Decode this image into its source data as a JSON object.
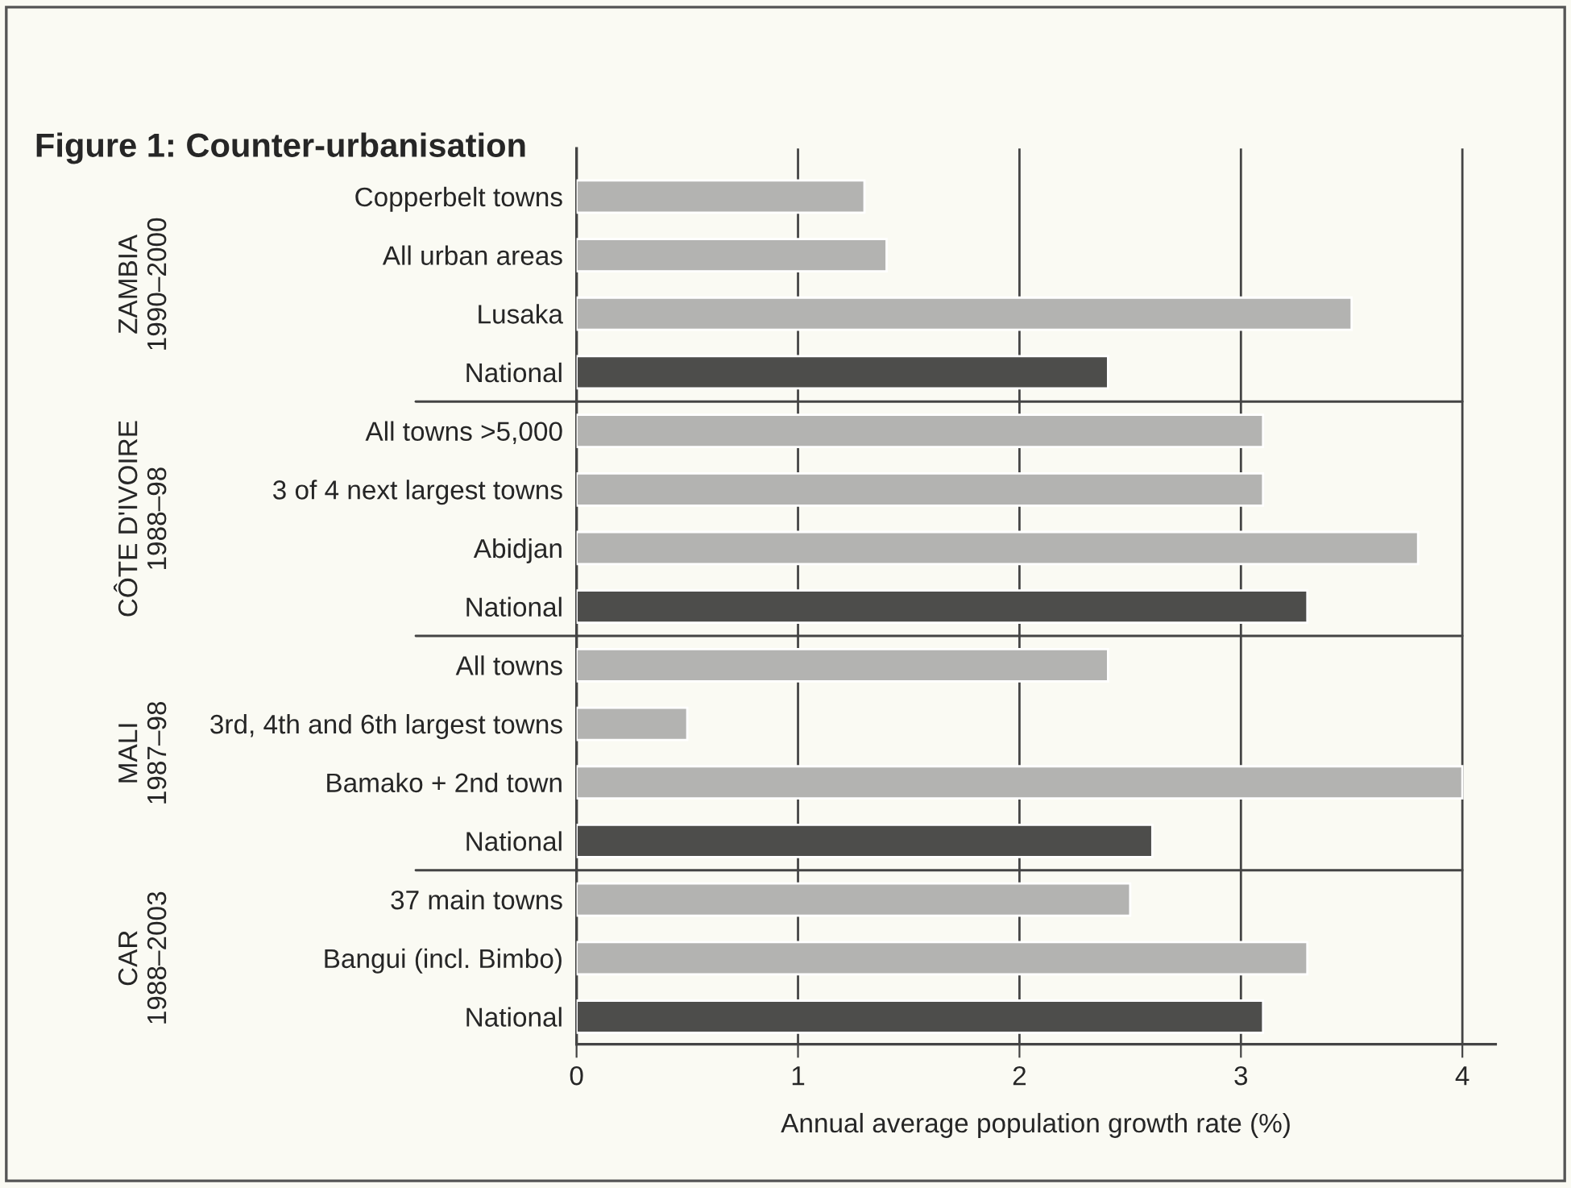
{
  "chart_data": {
    "type": "bar",
    "orientation": "horizontal",
    "title": "Figure 1: Counter-urbanisation",
    "xlabel": "Annual average population growth rate (%)",
    "categories": [
      "Copperbelt towns",
      "All urban areas",
      "Lusaka",
      "National",
      "All towns >5,000",
      "3 of 4 next largest towns",
      "Abidjan",
      "National",
      "All towns",
      "3rd, 4th and 6th largest towns",
      "Bamako + 2nd town",
      "National",
      "37 main towns",
      "Bangui (incl. Bimbo)",
      "National"
    ],
    "values": [
      1.3,
      1.4,
      3.5,
      2.4,
      3.1,
      3.1,
      3.8,
      3.3,
      2.4,
      0.5,
      4.0,
      2.6,
      2.5,
      3.3,
      3.1
    ],
    "colors": [
      "#b3b3b1",
      "#b3b3b1",
      "#b3b3b1",
      "#4d4d4b",
      "#b3b3b1",
      "#b3b3b1",
      "#b3b3b1",
      "#4d4d4b",
      "#b3b3b1",
      "#b3b3b1",
      "#b3b3b1",
      "#4d4d4b",
      "#b3b3b1",
      "#b3b3b1",
      "#4d4d4b"
    ],
    "annotations": [
      "ZAMBIA\n1990–2000",
      "CÔTE D'IVOIRE\n1988–98",
      "MALI\n1987–98",
      "CAR\n1988–2003"
    ],
    "xlim": [
      0,
      4.15
    ],
    "xticks": [
      0,
      1,
      2,
      3,
      4
    ],
    "grid": "x"
  }
}
